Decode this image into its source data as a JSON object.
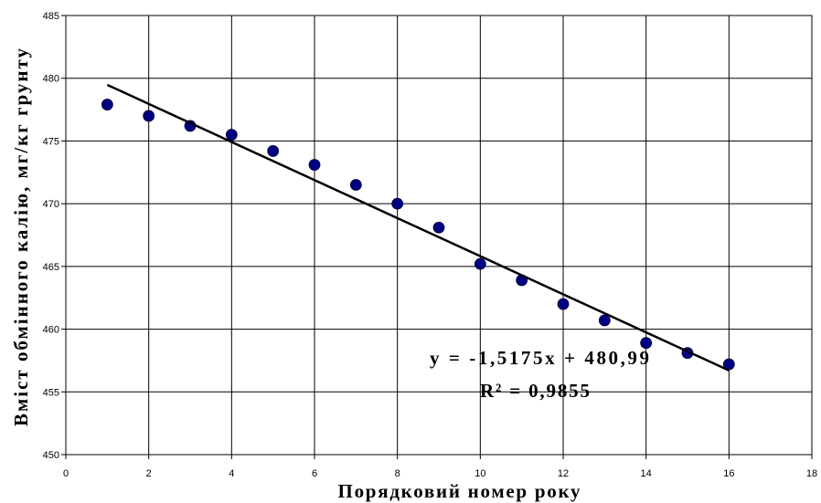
{
  "chart_data": {
    "type": "scatter",
    "xlabel": "Порядковий номер року",
    "ylabel": "Вміст обмінного калію, мг/кг грунту",
    "xlim": [
      0,
      18
    ],
    "ylim": [
      450,
      485
    ],
    "x_ticks": [
      "0",
      "2",
      "4",
      "6",
      "8",
      "10",
      "12",
      "14",
      "16",
      "18"
    ],
    "y_ticks": [
      "450",
      "455",
      "460",
      "465",
      "470",
      "475",
      "480",
      "485"
    ],
    "grid": true,
    "legend": false,
    "series": [
      {
        "x": [
          1,
          2,
          3,
          4,
          5,
          6,
          7,
          8,
          9,
          10,
          11,
          12,
          13,
          14,
          15,
          16
        ],
        "y": [
          477.9,
          477.0,
          476.2,
          475.5,
          474.2,
          473.1,
          471.5,
          470.0,
          468.1,
          465.2,
          463.9,
          462.0,
          460.7,
          458.9,
          458.1,
          457.2
        ],
        "marker_color": "#000080"
      }
    ],
    "trendline": {
      "type": "linear",
      "slope": -1.5175,
      "intercept": 480.99,
      "x_range": [
        1,
        16
      ],
      "color": "#000000",
      "equation": "y = -1,5175x + 480,99",
      "r_squared_label": "R² = 0,9855"
    }
  }
}
